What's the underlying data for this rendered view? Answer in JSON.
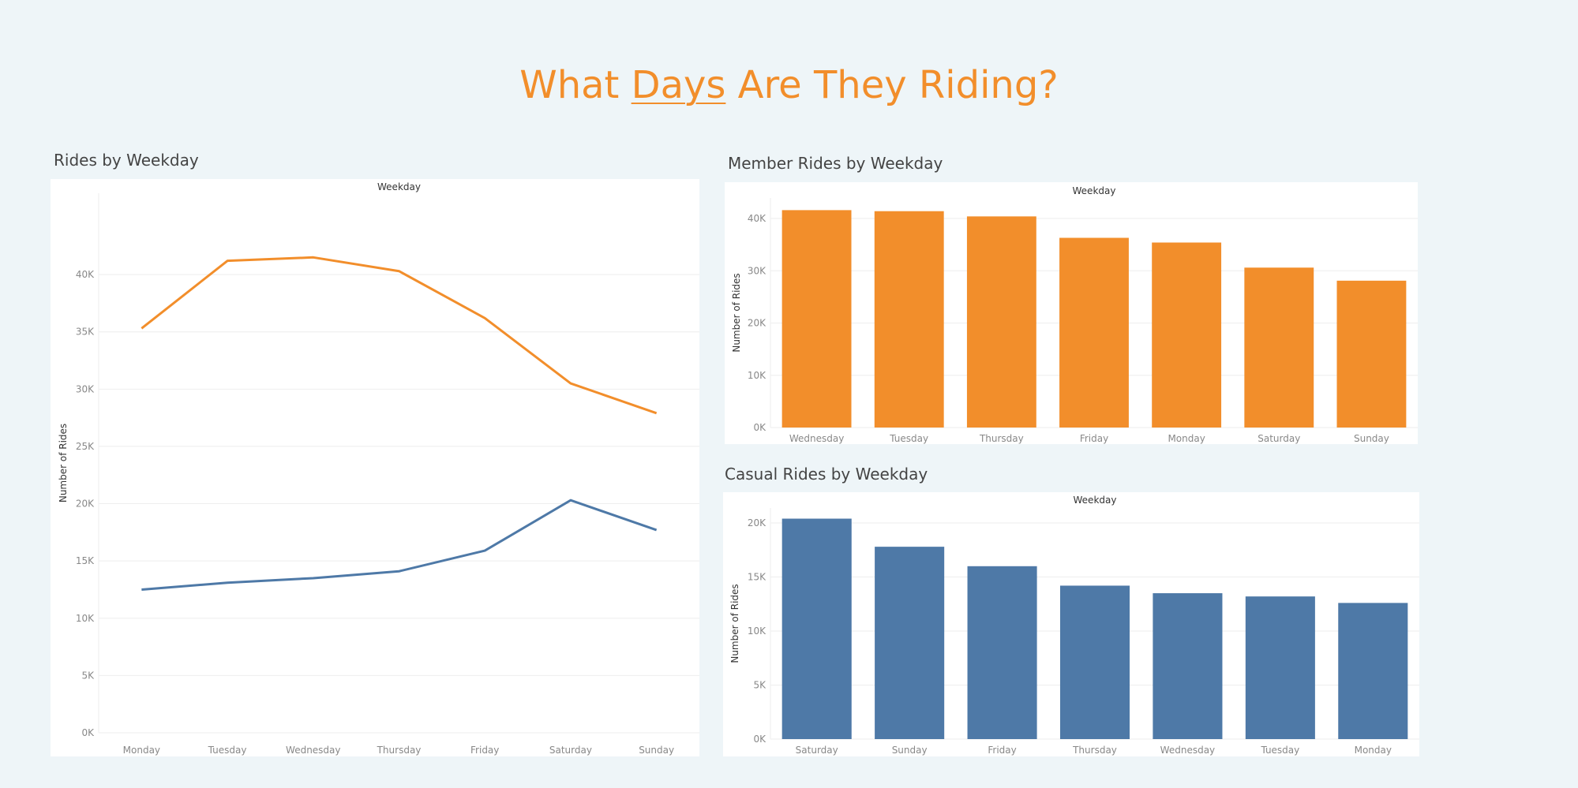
{
  "page": {
    "title_before": "What ",
    "title_highlight": "Days",
    "title_after": " Are They Riding?",
    "accent": "#f28e2b",
    "secondary": "#4e79a7"
  },
  "chart_data": [
    {
      "id": "rides",
      "type": "line",
      "title": "Rides by Weekday",
      "column_header": "Weekday",
      "ylabel": "Number of Rides",
      "categories": [
        "Monday",
        "Tuesday",
        "Wednesday",
        "Thursday",
        "Friday",
        "Saturday",
        "Sunday"
      ],
      "ylim": [
        0,
        44000
      ],
      "yticks": [
        0,
        5000,
        10000,
        15000,
        20000,
        25000,
        30000,
        35000,
        40000
      ],
      "ytick_labels": [
        "0K",
        "5K",
        "10K",
        "15K",
        "20K",
        "25K",
        "30K",
        "35K",
        "40K"
      ],
      "series": [
        {
          "color": "#f28e2b",
          "values": [
            35300,
            41200,
            41500,
            40300,
            36200,
            30500,
            27900
          ]
        },
        {
          "color": "#4e79a7",
          "values": [
            12500,
            13100,
            13500,
            14100,
            15900,
            20300,
            17700
          ]
        }
      ],
      "grid": true
    },
    {
      "id": "member",
      "type": "bar",
      "title": "Member Rides by Weekday",
      "column_header": "Weekday",
      "ylabel": "Number of Rides",
      "categories": [
        "Wednesday",
        "Tuesday",
        "Thursday",
        "Friday",
        "Monday",
        "Saturday",
        "Sunday"
      ],
      "values": [
        41600,
        41400,
        40400,
        36300,
        35400,
        30600,
        28100
      ],
      "color": "#f28e2b",
      "ylim": [
        0,
        40000
      ],
      "yticks": [
        0,
        10000,
        20000,
        30000,
        40000
      ],
      "ytick_labels": [
        "0K",
        "10K",
        "20K",
        "30K",
        "40K"
      ],
      "grid": true
    },
    {
      "id": "casual",
      "type": "bar",
      "title": "Casual Rides by Weekday",
      "column_header": "Weekday",
      "ylabel": "Number of Rides",
      "categories": [
        "Saturday",
        "Sunday",
        "Friday",
        "Thursday",
        "Wednesday",
        "Tuesday",
        "Monday"
      ],
      "values": [
        20400,
        17800,
        16000,
        14200,
        13500,
        13200,
        12600
      ],
      "color": "#4e79a7",
      "ylim": [
        0,
        20000
      ],
      "yticks": [
        0,
        5000,
        10000,
        15000,
        20000
      ],
      "ytick_labels": [
        "0K",
        "5K",
        "10K",
        "15K",
        "20K"
      ],
      "grid": true
    }
  ]
}
